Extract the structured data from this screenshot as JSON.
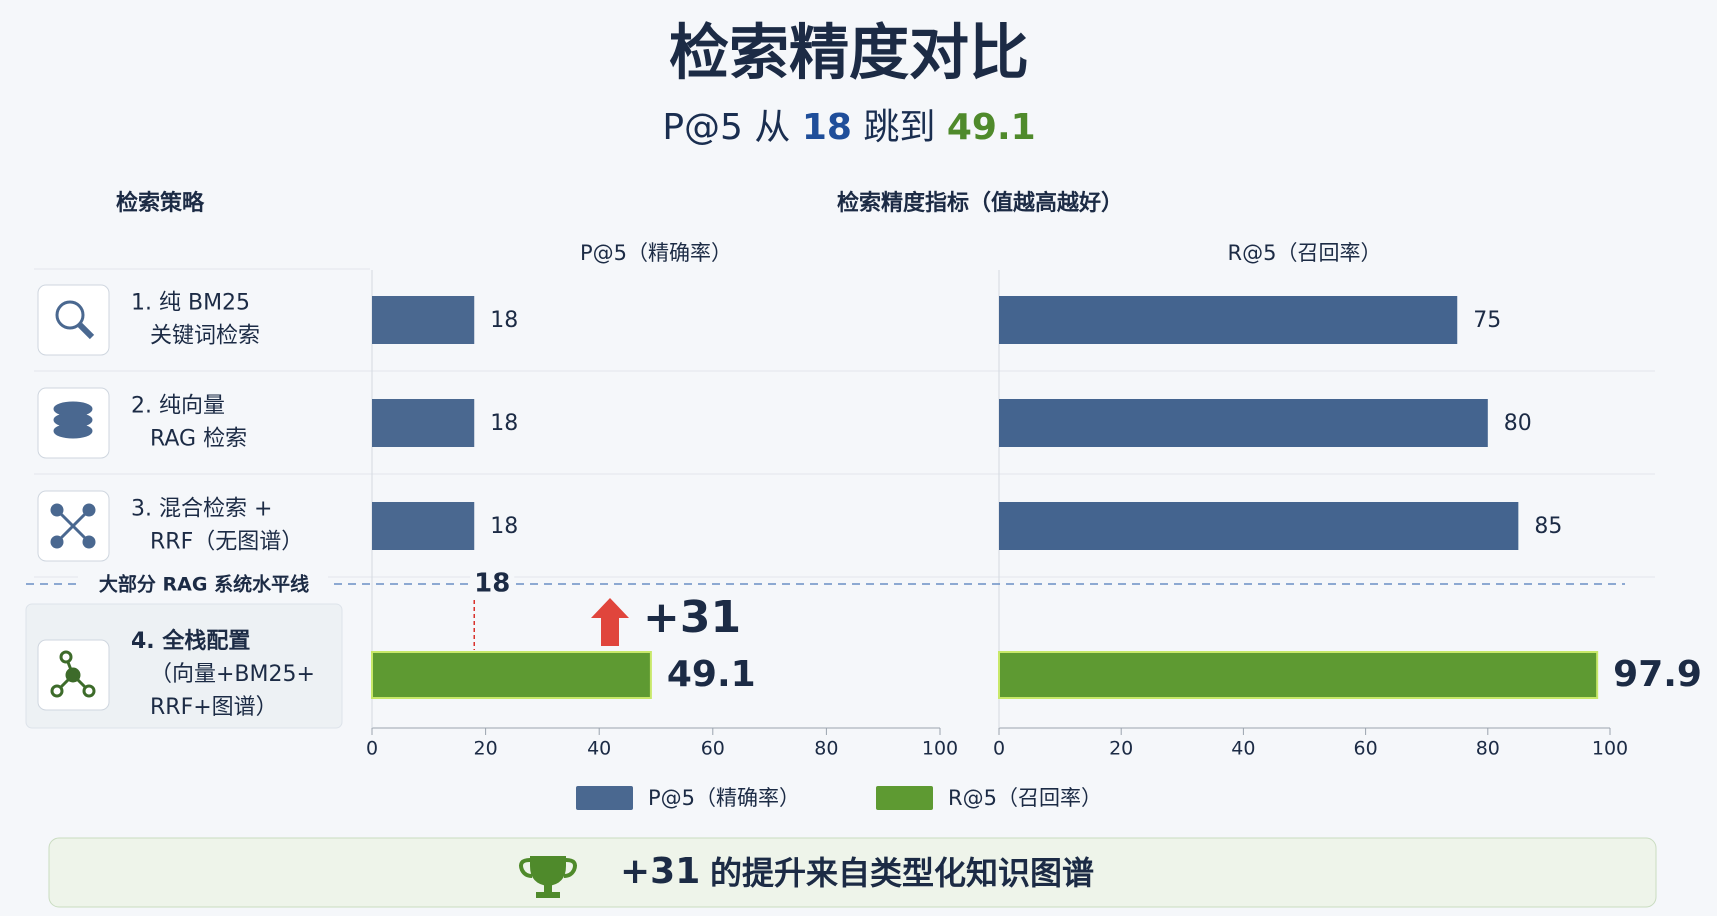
{
  "title": "检索精度对比",
  "subtitle": [
    "P@5 从",
    "18",
    "跳到",
    "49.1"
  ],
  "left_header": "检索策略",
  "right_header": "检索精度指标（值越高越好）",
  "chart_data": {
    "type": "bar",
    "orientation": "horizontal",
    "categories": [
      [
        "1. 纯 BM25",
        "关键词检索"
      ],
      [
        "2. 纯向量",
        "RAG 检索"
      ],
      [
        "3. 混合检索 +",
        "RRF（无图谱）"
      ],
      [
        "4. 全栈配置",
        "（向量+BM25+",
        "RRF+图谱）"
      ]
    ],
    "series": [
      {
        "name": "P@5（精确率）",
        "color": "#4a6890",
        "bar_colors": [
          "#4a6890",
          "#4a6890",
          "#4a6890",
          "#5e9a32"
        ],
        "values": [
          18,
          18,
          18,
          49.1
        ]
      },
      {
        "name": "R@5（召回率）",
        "color": "#5e9a32",
        "bar_colors": [
          "#44648f",
          "#44648f",
          "#44648f",
          "#5e9a32"
        ],
        "values": [
          75,
          80,
          85,
          97.9
        ]
      }
    ],
    "xlim": [
      0,
      100
    ],
    "xticks": [
      0,
      20,
      40,
      60,
      80,
      100
    ],
    "reference_line": {
      "label": "大部分 RAG 系统水平线",
      "value": 18
    },
    "annotation": "+31",
    "legend": "bottom"
  },
  "footer": [
    "+31",
    "的提升来自类型化知识图谱"
  ]
}
